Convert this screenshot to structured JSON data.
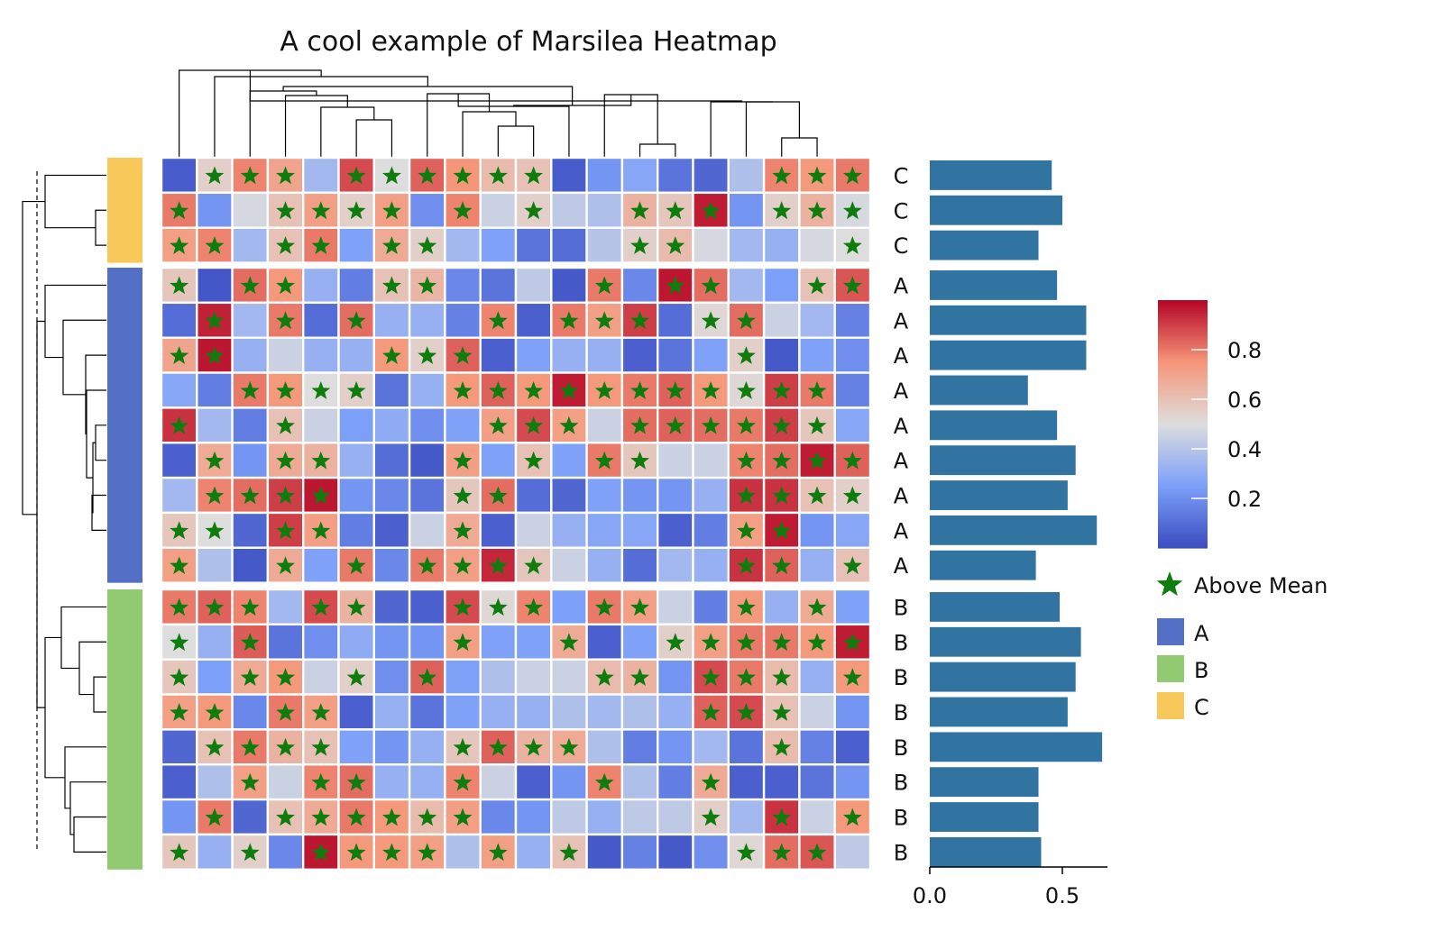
{
  "chart_data": {
    "type": "heatmap",
    "title": "A cool example of Marsilea Heatmap",
    "n_cols": 20,
    "row_groups": [
      {
        "name": "C",
        "color": "#F9C85A"
      },
      {
        "name": "A",
        "color": "#5470C6"
      },
      {
        "name": "B",
        "color": "#92CA71"
      }
    ],
    "row_labels": [
      "C",
      "C",
      "C",
      "A",
      "A",
      "A",
      "A",
      "A",
      "A",
      "A",
      "A",
      "A",
      "B",
      "B",
      "B",
      "B",
      "B",
      "B",
      "B",
      "B"
    ],
    "matrix": [
      [
        0.05,
        0.55,
        0.78,
        0.7,
        0.35,
        0.88,
        0.5,
        0.84,
        0.75,
        0.62,
        0.6,
        0.05,
        0.22,
        0.28,
        0.12,
        0.08,
        0.38,
        0.78,
        0.74,
        0.8
      ],
      [
        0.8,
        0.22,
        0.48,
        0.6,
        0.72,
        0.55,
        0.72,
        0.2,
        0.78,
        0.45,
        0.55,
        0.42,
        0.38,
        0.65,
        0.58,
        0.96,
        0.22,
        0.55,
        0.65,
        0.48
      ],
      [
        0.72,
        0.78,
        0.35,
        0.6,
        0.8,
        0.26,
        0.68,
        0.55,
        0.35,
        0.26,
        0.12,
        0.1,
        0.4,
        0.55,
        0.62,
        0.48,
        0.35,
        0.32,
        0.48,
        0.5
      ],
      [
        0.58,
        0.03,
        0.82,
        0.74,
        0.32,
        0.15,
        0.6,
        0.64,
        0.18,
        0.12,
        0.42,
        0.04,
        0.8,
        0.18,
        0.97,
        0.82,
        0.35,
        0.25,
        0.6,
        0.86
      ],
      [
        0.1,
        0.95,
        0.35,
        0.8,
        0.1,
        0.82,
        0.32,
        0.32,
        0.16,
        0.78,
        0.06,
        0.8,
        0.72,
        0.9,
        0.1,
        0.52,
        0.82,
        0.45,
        0.35,
        0.16
      ],
      [
        0.7,
        0.97,
        0.32,
        0.45,
        0.32,
        0.32,
        0.74,
        0.55,
        0.84,
        0.06,
        0.26,
        0.32,
        0.32,
        0.06,
        0.12,
        0.26,
        0.55,
        0.04,
        0.26,
        0.2
      ],
      [
        0.28,
        0.15,
        0.8,
        0.74,
        0.5,
        0.55,
        0.12,
        0.32,
        0.74,
        0.84,
        0.74,
        0.96,
        0.74,
        0.8,
        0.84,
        0.74,
        0.52,
        0.9,
        0.8,
        0.16
      ],
      [
        0.92,
        0.35,
        0.15,
        0.6,
        0.45,
        0.25,
        0.3,
        0.2,
        0.26,
        0.72,
        0.88,
        0.72,
        0.45,
        0.82,
        0.84,
        0.82,
        0.8,
        0.9,
        0.58,
        0.28
      ],
      [
        0.06,
        0.68,
        0.22,
        0.68,
        0.65,
        0.32,
        0.1,
        0.04,
        0.72,
        0.26,
        0.6,
        0.26,
        0.8,
        0.58,
        0.45,
        0.45,
        0.78,
        0.82,
        0.96,
        0.84
      ],
      [
        0.35,
        0.78,
        0.82,
        0.9,
        0.97,
        0.22,
        0.18,
        0.12,
        0.58,
        0.82,
        0.1,
        0.08,
        0.26,
        0.22,
        0.22,
        0.32,
        0.92,
        0.92,
        0.6,
        0.55
      ],
      [
        0.58,
        0.5,
        0.08,
        0.9,
        0.72,
        0.15,
        0.06,
        0.45,
        0.68,
        0.06,
        0.45,
        0.32,
        0.28,
        0.28,
        0.06,
        0.15,
        0.72,
        0.96,
        0.22,
        0.28
      ],
      [
        0.72,
        0.38,
        0.04,
        0.68,
        0.26,
        0.8,
        0.18,
        0.8,
        0.72,
        0.94,
        0.58,
        0.45,
        0.32,
        0.1,
        0.35,
        0.32,
        0.92,
        0.84,
        0.32,
        0.6
      ],
      [
        0.8,
        0.84,
        0.78,
        0.35,
        0.88,
        0.65,
        0.08,
        0.06,
        0.88,
        0.52,
        0.78,
        0.25,
        0.8,
        0.72,
        0.45,
        0.15,
        0.74,
        0.32,
        0.68,
        0.26
      ],
      [
        0.5,
        0.32,
        0.85,
        0.12,
        0.2,
        0.3,
        0.22,
        0.22,
        0.72,
        0.26,
        0.26,
        0.68,
        0.06,
        0.26,
        0.55,
        0.72,
        0.8,
        0.8,
        0.74,
        0.96
      ],
      [
        0.58,
        0.25,
        0.68,
        0.74,
        0.45,
        0.55,
        0.2,
        0.84,
        0.26,
        0.38,
        0.45,
        0.45,
        0.62,
        0.65,
        0.22,
        0.88,
        0.8,
        0.62,
        0.32,
        0.74
      ],
      [
        0.72,
        0.74,
        0.18,
        0.8,
        0.72,
        0.06,
        0.32,
        0.12,
        0.26,
        0.32,
        0.32,
        0.38,
        0.35,
        0.38,
        0.32,
        0.84,
        0.88,
        0.6,
        0.45,
        0.22
      ],
      [
        0.08,
        0.6,
        0.8,
        0.65,
        0.6,
        0.26,
        0.22,
        0.32,
        0.58,
        0.84,
        0.65,
        0.68,
        0.38,
        0.15,
        0.22,
        0.35,
        0.12,
        0.62,
        0.16,
        0.06
      ],
      [
        0.06,
        0.38,
        0.72,
        0.45,
        0.78,
        0.82,
        0.32,
        0.32,
        0.78,
        0.45,
        0.06,
        0.22,
        0.78,
        0.38,
        0.15,
        0.68,
        0.06,
        0.06,
        0.12,
        0.22
      ],
      [
        0.22,
        0.8,
        0.08,
        0.6,
        0.68,
        0.8,
        0.74,
        0.62,
        0.72,
        0.18,
        0.22,
        0.42,
        0.32,
        0.42,
        0.42,
        0.55,
        0.35,
        0.92,
        0.45,
        0.74
      ],
      [
        0.58,
        0.32,
        0.55,
        0.18,
        0.97,
        0.74,
        0.74,
        0.72,
        0.38,
        0.72,
        0.32,
        0.6,
        0.04,
        0.16,
        0.04,
        0.2,
        0.52,
        0.82,
        0.86,
        0.42
      ]
    ],
    "stars": [
      [
        0,
        1,
        1,
        1,
        0,
        1,
        1,
        1,
        1,
        1,
        1,
        0,
        0,
        0,
        0,
        0,
        0,
        1,
        1,
        1
      ],
      [
        1,
        0,
        0,
        1,
        1,
        1,
        1,
        0,
        1,
        0,
        1,
        0,
        0,
        1,
        1,
        1,
        0,
        1,
        1,
        1
      ],
      [
        1,
        1,
        0,
        1,
        1,
        0,
        1,
        1,
        0,
        0,
        0,
        0,
        0,
        1,
        1,
        0,
        0,
        0,
        0,
        1
      ],
      [
        1,
        0,
        1,
        1,
        0,
        0,
        1,
        1,
        0,
        0,
        0,
        0,
        1,
        0,
        1,
        1,
        0,
        0,
        1,
        1
      ],
      [
        0,
        1,
        0,
        1,
        0,
        1,
        0,
        0,
        0,
        1,
        0,
        1,
        1,
        1,
        0,
        1,
        1,
        0,
        0,
        0
      ],
      [
        1,
        1,
        0,
        0,
        0,
        0,
        1,
        1,
        1,
        0,
        0,
        0,
        0,
        0,
        0,
        0,
        1,
        0,
        0,
        0
      ],
      [
        0,
        0,
        1,
        1,
        1,
        1,
        0,
        0,
        1,
        1,
        1,
        1,
        1,
        1,
        1,
        1,
        1,
        1,
        1,
        0
      ],
      [
        1,
        0,
        0,
        1,
        0,
        0,
        0,
        0,
        0,
        1,
        1,
        1,
        0,
        1,
        1,
        1,
        1,
        1,
        1,
        0
      ],
      [
        0,
        1,
        0,
        1,
        1,
        0,
        0,
        0,
        1,
        0,
        1,
        0,
        1,
        1,
        0,
        0,
        1,
        1,
        1,
        1
      ],
      [
        0,
        1,
        1,
        1,
        1,
        0,
        0,
        0,
        1,
        1,
        0,
        0,
        0,
        0,
        0,
        0,
        1,
        1,
        1,
        1
      ],
      [
        1,
        1,
        0,
        1,
        1,
        0,
        0,
        0,
        1,
        0,
        0,
        0,
        0,
        0,
        0,
        0,
        1,
        1,
        0,
        0
      ],
      [
        1,
        0,
        0,
        1,
        0,
        1,
        0,
        1,
        1,
        1,
        1,
        0,
        0,
        0,
        0,
        0,
        1,
        1,
        0,
        1
      ],
      [
        1,
        1,
        1,
        0,
        1,
        1,
        0,
        0,
        1,
        1,
        1,
        0,
        1,
        1,
        0,
        0,
        1,
        0,
        1,
        0
      ],
      [
        1,
        0,
        1,
        0,
        0,
        0,
        0,
        0,
        1,
        0,
        0,
        1,
        0,
        0,
        1,
        1,
        1,
        1,
        1,
        1
      ],
      [
        1,
        0,
        1,
        1,
        0,
        1,
        0,
        1,
        0,
        0,
        0,
        0,
        1,
        1,
        0,
        1,
        1,
        1,
        0,
        1
      ],
      [
        1,
        1,
        0,
        1,
        1,
        0,
        0,
        0,
        0,
        0,
        0,
        0,
        0,
        0,
        0,
        1,
        1,
        1,
        0,
        0
      ],
      [
        0,
        1,
        1,
        1,
        1,
        0,
        0,
        0,
        1,
        1,
        1,
        1,
        0,
        0,
        0,
        0,
        0,
        1,
        0,
        0
      ],
      [
        0,
        0,
        1,
        0,
        1,
        1,
        0,
        0,
        1,
        0,
        0,
        0,
        1,
        0,
        0,
        1,
        0,
        0,
        0,
        0
      ],
      [
        0,
        1,
        0,
        1,
        1,
        1,
        1,
        1,
        1,
        0,
        0,
        0,
        0,
        0,
        0,
        1,
        0,
        1,
        0,
        1
      ],
      [
        1,
        0,
        1,
        0,
        1,
        1,
        1,
        1,
        0,
        1,
        0,
        1,
        0,
        0,
        0,
        0,
        1,
        1,
        1,
        0
      ]
    ],
    "bar_values": [
      0.46,
      0.5,
      0.41,
      0.48,
      0.59,
      0.59,
      0.37,
      0.48,
      0.55,
      0.52,
      0.63,
      0.4,
      0.49,
      0.57,
      0.55,
      0.52,
      0.65,
      0.41,
      0.41,
      0.42
    ],
    "bar_color": "#3274A1",
    "bar_axis": {
      "xlim": [
        0,
        0.67
      ],
      "ticks": [
        0.0,
        0.5
      ],
      "tick_labels": [
        "0.0",
        "0.5"
      ]
    },
    "colorbar": {
      "ticks": [
        0.2,
        0.4,
        0.6,
        0.8
      ],
      "tick_labels": [
        "0.2",
        "0.4",
        "0.6",
        "0.8"
      ],
      "range": [
        0,
        1
      ],
      "colormap": "coolwarm"
    },
    "star_color": "#0E7D0E",
    "legend": {
      "star_label": "Above Mean",
      "groups": [
        {
          "label": "A",
          "color": "#5470C6"
        },
        {
          "label": "B",
          "color": "#92CA71"
        },
        {
          "label": "C",
          "color": "#F9C85A"
        }
      ]
    }
  }
}
